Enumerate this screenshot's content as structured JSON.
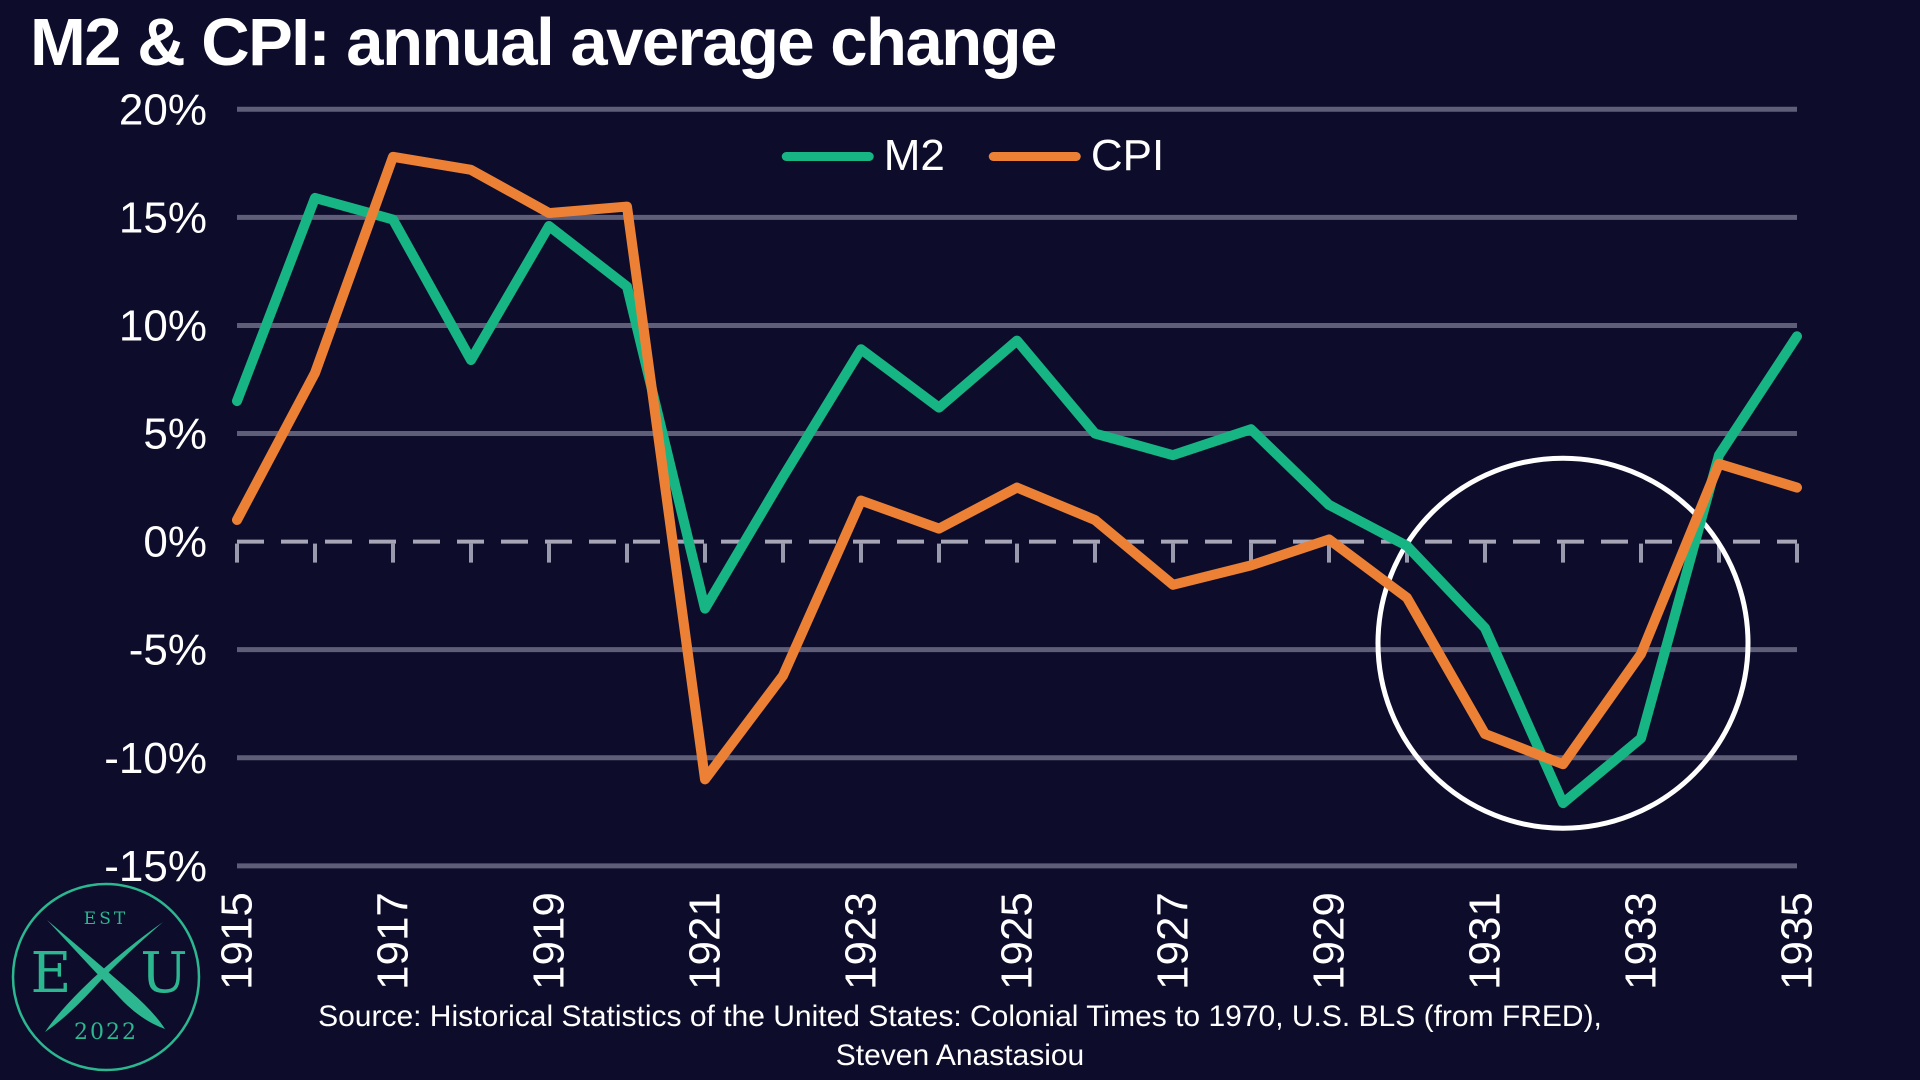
{
  "title": "M2 & CPI: annual average change",
  "legend": {
    "items": [
      {
        "label": "M2",
        "color": "#17b584"
      },
      {
        "label": "CPI",
        "color": "#ec8135"
      }
    ]
  },
  "source": {
    "line1": "Source: Historical Statistics of the United States: Colonial Times to 1970, U.S. BLS (from FRED),",
    "line2": "Steven Anastasiou"
  },
  "logo": {
    "est": "EST",
    "year": "2022",
    "left_letter": "E",
    "right_letter": "U",
    "color": "#2cb790"
  },
  "colors": {
    "background": "#0d0d2b",
    "gridline": "#5e5e78",
    "zero_line": "#a6a6b6",
    "year_tick": "#9a9aae",
    "text": "#ffffff",
    "annotation_circle": "#ffffff"
  },
  "chart_data": {
    "type": "line",
    "title": "M2 & CPI: annual average change",
    "x": [
      1915,
      1916,
      1917,
      1918,
      1919,
      1920,
      1921,
      1922,
      1923,
      1924,
      1925,
      1926,
      1927,
      1928,
      1929,
      1930,
      1931,
      1932,
      1933,
      1934,
      1935
    ],
    "series": [
      {
        "name": "M2",
        "color": "#17b584",
        "values": [
          6.5,
          15.9,
          14.9,
          8.4,
          14.6,
          11.8,
          -3.1,
          3.0,
          8.9,
          6.2,
          9.3,
          5.0,
          4.0,
          5.2,
          1.7,
          -0.2,
          -4.0,
          -12.1,
          -9.1,
          4.0,
          9.5
        ]
      },
      {
        "name": "CPI",
        "color": "#ec8135",
        "values": [
          1.0,
          7.8,
          17.8,
          17.2,
          15.2,
          15.5,
          -11.0,
          -6.2,
          1.9,
          0.6,
          2.5,
          1.0,
          -2.0,
          -1.1,
          0.1,
          -2.6,
          -8.9,
          -10.3,
          -5.2,
          3.6,
          2.5
        ]
      }
    ],
    "xlabel": "",
    "ylabel": "",
    "ylim": [
      -15,
      20
    ],
    "y_ticks": [
      20,
      15,
      10,
      5,
      0,
      -5,
      -10,
      -15
    ],
    "y_tick_labels": [
      "20%",
      "15%",
      "10%",
      "5%",
      "0%",
      "-5%",
      "-10%",
      "-15%"
    ],
    "x_tick_labels": [
      "1915",
      "1917",
      "1919",
      "1921",
      "1923",
      "1925",
      "1927",
      "1929",
      "1931",
      "1933",
      "1935"
    ],
    "grid": "horizontal",
    "zero_line_dashed": true,
    "legend_position": "top-center",
    "annotation_circle": {
      "x_center_year": 1932,
      "y_center_value": -4.7,
      "radius_px": 185
    }
  }
}
